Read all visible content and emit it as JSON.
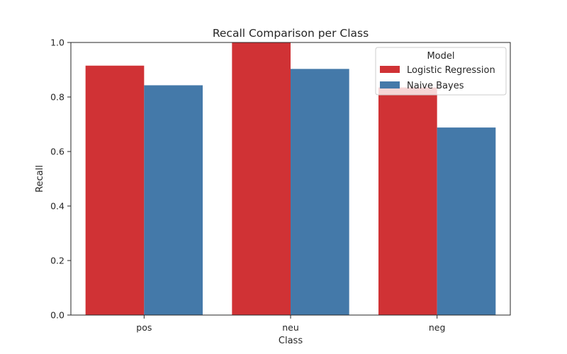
{
  "chart_data": {
    "type": "bar",
    "title": "Recall Comparison per Class",
    "xlabel": "Class",
    "ylabel": "Recall",
    "categories": [
      "pos",
      "neu",
      "neg"
    ],
    "series": [
      {
        "name": "Logistic Regression",
        "color": "#d03235",
        "values": [
          0.915,
          1.0,
          0.835
        ]
      },
      {
        "name": "Naive Bayes",
        "color": "#4479a9",
        "values": [
          0.843,
          0.903,
          0.688
        ]
      }
    ],
    "ylim": [
      0,
      1.0
    ],
    "yticks": [
      "0.0",
      "0.2",
      "0.4",
      "0.6",
      "0.8",
      "1.0"
    ],
    "grid": false,
    "legend": {
      "title": "Model",
      "placement": "top-right"
    }
  }
}
